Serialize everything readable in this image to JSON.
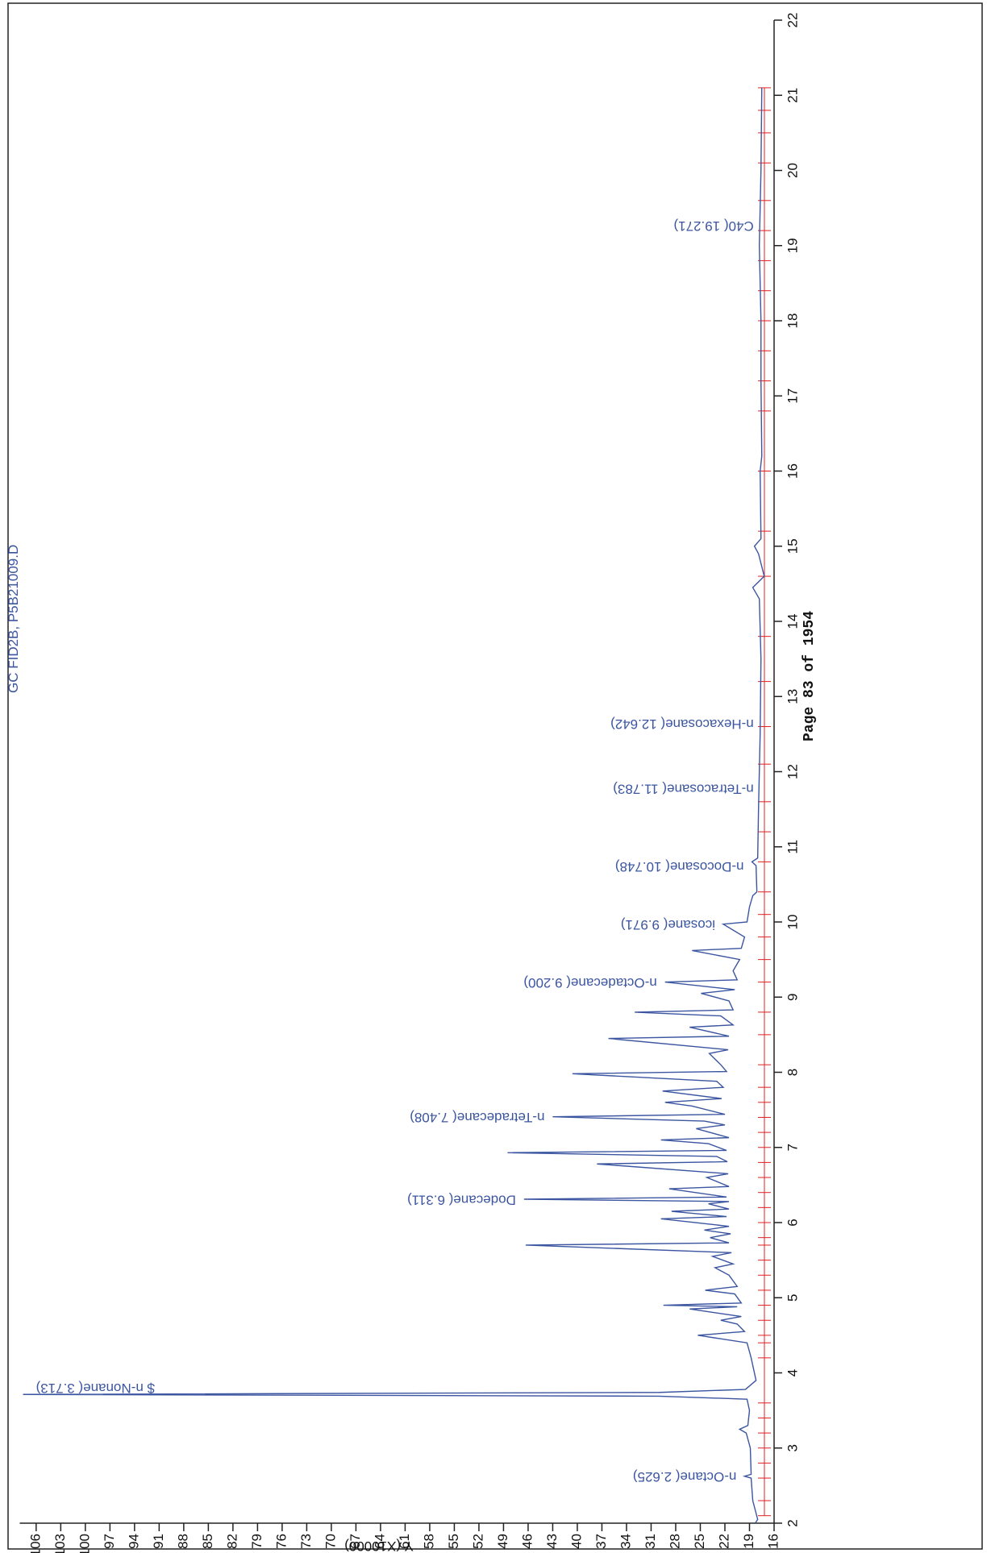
{
  "chart_data": {
    "type": "line",
    "title": "GC FID2B, P5B21009.D",
    "footer": "Page 83 of 1954",
    "ylabel": "Y (X10000)",
    "xlim": [
      2,
      22
    ],
    "ylim": [
      16,
      108
    ],
    "xticks": [
      2,
      3,
      4,
      5,
      6,
      7,
      8,
      9,
      10,
      11,
      12,
      13,
      14,
      15,
      16,
      17,
      18,
      19,
      20,
      21,
      22
    ],
    "yticks": [
      16,
      19,
      22,
      25,
      28,
      31,
      34,
      37,
      40,
      43,
      46,
      49,
      52,
      55,
      58,
      61,
      64,
      67,
      70,
      73,
      76,
      79,
      82,
      85,
      88,
      91,
      94,
      97,
      100,
      103,
      106
    ],
    "series": [
      {
        "color": "#3b55a0",
        "x": [
          2.0,
          2.05,
          2.3,
          2.6,
          2.625,
          2.65,
          3.0,
          3.2,
          3.25,
          3.3,
          3.5,
          3.65,
          3.69,
          3.713,
          3.74,
          3.78,
          3.9,
          4.2,
          4.4,
          4.5,
          4.55,
          4.65,
          4.7,
          4.75,
          4.85,
          4.88,
          4.9,
          4.93,
          5.05,
          5.1,
          5.15,
          5.3,
          5.4,
          5.45,
          5.55,
          5.6,
          5.7,
          5.73,
          5.8,
          5.85,
          5.9,
          5.95,
          6.05,
          6.08,
          6.15,
          6.18,
          6.25,
          6.28,
          6.311,
          6.34,
          6.45,
          6.48,
          6.6,
          6.65,
          6.78,
          6.81,
          6.88,
          6.93,
          6.96,
          7.05,
          7.1,
          7.13,
          7.25,
          7.3,
          7.35,
          7.408,
          7.44,
          7.55,
          7.6,
          7.65,
          7.75,
          7.8,
          7.88,
          7.98,
          8.01,
          8.1,
          8.25,
          8.3,
          8.45,
          8.48,
          8.6,
          8.63,
          8.75,
          8.8,
          8.83,
          8.95,
          9.05,
          9.1,
          9.2,
          9.23,
          9.35,
          9.5,
          9.62,
          9.65,
          9.8,
          9.971,
          10.0,
          10.2,
          10.35,
          10.4,
          10.75,
          10.8,
          10.85,
          11.5,
          12.5,
          13.5,
          14.3,
          14.45,
          14.6,
          14.9,
          15.0,
          15.1,
          16.0,
          16.2,
          17.2,
          18,
          19,
          20,
          21.1
        ],
        "values": [
          18.3,
          18.0,
          18.6,
          18.8,
          19.6,
          18.8,
          18.9,
          19.4,
          20.2,
          19.2,
          19.0,
          19.3,
          30,
          107.6,
          30,
          19.5,
          18.2,
          18.8,
          19.3,
          25.3,
          19.6,
          20.5,
          22.5,
          20,
          26.3,
          20.5,
          29.5,
          20,
          20.8,
          24.4,
          20.5,
          21.5,
          23.2,
          21,
          23.5,
          21.2,
          46.3,
          21.5,
          23.8,
          21.3,
          24.5,
          21.5,
          29.8,
          21.8,
          28.5,
          21.5,
          24,
          21.5,
          46.5,
          21.8,
          28.8,
          21.5,
          24.2,
          21.6,
          37.6,
          21.7,
          23,
          48.5,
          21.8,
          24,
          29.8,
          21.5,
          25.5,
          22,
          24.5,
          43,
          22,
          26,
          29.3,
          22.4,
          29.6,
          22.2,
          23,
          40.6,
          21.8,
          22.5,
          23.9,
          21.6,
          36.2,
          21.5,
          26.3,
          21,
          22.5,
          33,
          21,
          21.5,
          24.9,
          20.8,
          29.3,
          20.5,
          21,
          20.2,
          26,
          20,
          19.6,
          22.2,
          19.3,
          19,
          18.6,
          18.1,
          18.2,
          18.7,
          18,
          17.9,
          17.7,
          17.6,
          17.8,
          18.6,
          17.2,
          17.9,
          18.4,
          17.6,
          17.7,
          17.5,
          17.6,
          17.6,
          17.8,
          17.6,
          17.5
        ]
      }
    ],
    "events": {
      "color": "#e02020",
      "x": [
        2.1,
        2.3,
        2.6,
        2.8,
        3.0,
        3.2,
        3.4,
        3.6,
        4.2,
        4.4,
        4.5,
        4.7,
        4.9,
        5.1,
        5.3,
        5.5,
        5.7,
        5.8,
        6.0,
        6.2,
        6.4,
        6.6,
        6.8,
        7.0,
        7.2,
        7.4,
        7.6,
        7.8,
        8.1,
        8.5,
        8.8,
        9.2,
        9.5,
        9.8,
        10.1,
        10.4,
        10.8,
        11.2,
        11.6,
        12.1,
        12.6,
        13.2,
        13.8,
        14.6,
        15.2,
        16.0,
        16.8,
        17.2,
        17.6,
        18.0,
        18.4,
        18.8,
        19.2,
        19.6,
        20.1,
        20.5,
        20.8,
        21.1
      ]
    },
    "annotations": [
      {
        "text": "n-Octane( 2.625)",
        "x": 2.625
      },
      {
        "text": "$ n-Nonane( 3.713)",
        "x": 3.713
      },
      {
        "text": "Dodecane( 6.311)",
        "x": 6.311
      },
      {
        "text": "n-Tetradecane( 7.408)",
        "x": 7.408
      },
      {
        "text": "n-Octadecane( 9.200)",
        "x": 9.2
      },
      {
        "text": "icosane( 9.971)",
        "x": 9.971
      },
      {
        "text": "n-Docosane( 10.748)",
        "x": 10.748
      },
      {
        "text": "n-Tetracosane( 11.783)",
        "x": 11.783
      },
      {
        "text": "n-Hexacosane( 12.642)",
        "x": 12.642
      },
      {
        "text": "C40( 19.271)",
        "x": 19.271
      }
    ]
  }
}
